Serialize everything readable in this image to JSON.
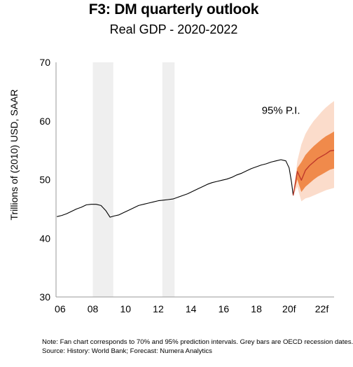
{
  "chart_data": {
    "type": "line",
    "title": "F3: DM quarterly outlook",
    "subtitle": "Real GDP - 2020-2022",
    "xlabel": "",
    "ylabel": "Trillions of (2010) USD, SAAR",
    "xlim": [
      2005.75,
      2022.75
    ],
    "ylim": [
      30,
      70
    ],
    "y_ticks": [
      "30",
      "40",
      "50",
      "60",
      "70"
    ],
    "x_ticks": [
      {
        "x": 2006,
        "label": "06"
      },
      {
        "x": 2008,
        "label": "08"
      },
      {
        "x": 2010,
        "label": "10"
      },
      {
        "x": 2012,
        "label": "12"
      },
      {
        "x": 2014,
        "label": "14"
      },
      {
        "x": 2016,
        "label": "16"
      },
      {
        "x": 2018,
        "label": "18"
      },
      {
        "x": 2020,
        "label": "20f"
      },
      {
        "x": 2022,
        "label": "22f"
      }
    ],
    "recessions": [
      [
        2008.0,
        2009.25
      ],
      [
        2012.25,
        2013.0
      ]
    ],
    "history": {
      "x": [
        2005.8,
        2006.1,
        2006.4,
        2006.7,
        2007.0,
        2007.3,
        2007.6,
        2007.9,
        2008.2,
        2008.5,
        2008.8,
        2009.05,
        2009.3,
        2009.6,
        2009.9,
        2010.2,
        2010.5,
        2010.8,
        2011.1,
        2011.4,
        2011.7,
        2012.0,
        2012.3,
        2012.6,
        2012.9,
        2013.2,
        2013.5,
        2013.8,
        2014.1,
        2014.4,
        2014.7,
        2015.0,
        2015.3,
        2015.6,
        2015.9,
        2016.2,
        2016.5,
        2016.8,
        2017.1,
        2017.4,
        2017.7,
        2018.0,
        2018.3,
        2018.6,
        2018.9,
        2019.2,
        2019.5,
        2019.8,
        2020.0,
        2020.15,
        2020.25
      ],
      "y": [
        43.7,
        43.9,
        44.2,
        44.6,
        45.0,
        45.3,
        45.7,
        45.8,
        45.8,
        45.6,
        44.7,
        43.6,
        43.8,
        44.0,
        44.4,
        44.8,
        45.2,
        45.6,
        45.8,
        46.0,
        46.2,
        46.4,
        46.5,
        46.6,
        46.7,
        47.0,
        47.3,
        47.6,
        48.0,
        48.4,
        48.8,
        49.2,
        49.5,
        49.7,
        49.9,
        50.1,
        50.4,
        50.8,
        51.1,
        51.5,
        51.9,
        52.2,
        52.5,
        52.7,
        53.0,
        53.2,
        53.4,
        53.2,
        52.0,
        49.5,
        47.3
      ]
    },
    "forecast": {
      "x": [
        2020.25,
        2020.5,
        2020.75,
        2021.0,
        2021.25,
        2021.5,
        2021.75,
        2022.0,
        2022.25,
        2022.5,
        2022.75
      ],
      "central": [
        47.3,
        51.4,
        49.9,
        51.6,
        52.4,
        53.0,
        53.6,
        54.0,
        54.4,
        54.9,
        55.0
      ],
      "p70_lower": [
        47.3,
        50.0,
        47.9,
        48.8,
        49.4,
        50.0,
        50.5,
        50.9,
        51.3,
        51.7,
        51.9
      ],
      "p70_upper": [
        47.3,
        52.0,
        53.0,
        54.2,
        55.0,
        55.7,
        56.3,
        56.9,
        57.4,
        57.8,
        58.2
      ],
      "p95_lower": [
        47.3,
        48.8,
        46.3,
        46.8,
        47.0,
        47.3,
        47.6,
        47.9,
        48.2,
        48.4,
        48.6
      ],
      "p95_upper": [
        47.3,
        53.2,
        56.0,
        57.8,
        59.0,
        60.0,
        60.8,
        61.6,
        62.3,
        62.9,
        63.4
      ],
      "annotation": "95% P.I."
    },
    "colors": {
      "history": "#000000",
      "central": "#c0392b",
      "p70": "#f08a4b",
      "p95": "#fbdccb",
      "recession": "#efefef",
      "axis": "#999999"
    }
  },
  "note": {
    "line1": "Note: Fan chart corresponds to 70% and 95% prediction intervals. Grey bars are OECD recession dates.",
    "line2": "Source: History: World Bank; Forecast: Numera Analytics"
  }
}
